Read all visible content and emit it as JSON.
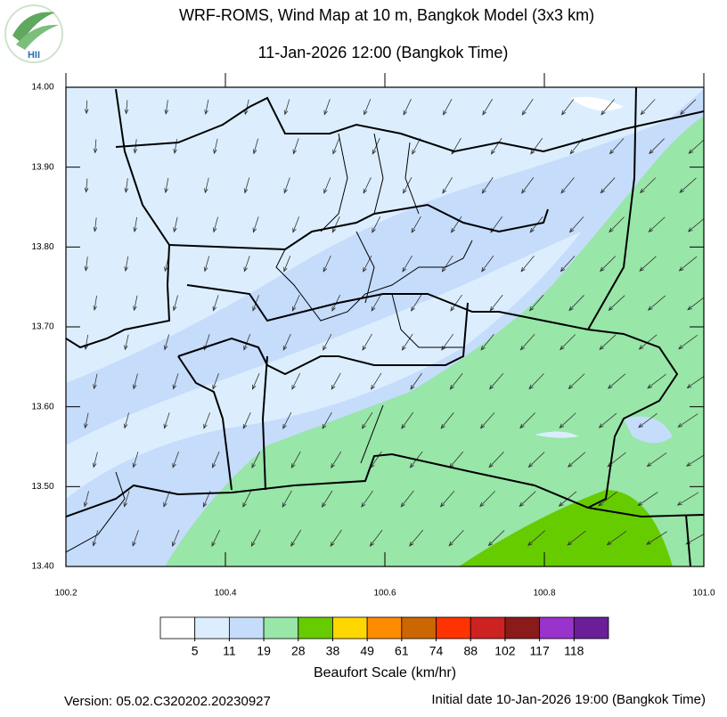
{
  "header": {
    "title": "WRF-ROMS, Wind Map at 10 m, Bangkok Model (3x3 km)",
    "subtitle": "11-Jan-2026 12:00 (Bangkok Time)",
    "logo_text": "HII"
  },
  "map": {
    "xlim": [
      100.2,
      101.0
    ],
    "ylim": [
      13.4,
      14.0
    ],
    "xticks": [
      100.2,
      100.4,
      100.6,
      100.8,
      {
        "value": 101.0,
        "label": "101.0"
      }
    ],
    "yticks": [
      {
        "value": 13.4,
        "label": "13.40"
      },
      {
        "value": 13.5,
        "label": "13.50"
      },
      {
        "value": 13.6,
        "label": "13.60"
      },
      {
        "value": 13.7,
        "label": "13.70"
      },
      {
        "value": 13.8,
        "label": "13.80"
      },
      {
        "value": 13.9,
        "label": "13.90"
      },
      {
        "value": 14.0,
        "label": "14.00"
      }
    ]
  },
  "colorbar": {
    "title": "Beaufort Scale (km/hr)",
    "colors": [
      "#ffffff",
      "#dceefe",
      "#c5dcfb",
      "#98e6a8",
      "#66cc00",
      "#ffd700",
      "#ff8c00",
      "#cc6600",
      "#ff3300",
      "#cc2222",
      "#8b1a1a",
      "#9933cc",
      "#6a1f99"
    ],
    "levels": [
      5,
      11,
      19,
      28,
      38,
      49,
      61,
      74,
      88,
      102,
      117,
      118
    ]
  },
  "footer": {
    "version": "Version: 05.02.C320202.20230927",
    "initial": "Initial date 10-Jan-2026 19:00 (Bangkok Time)"
  }
}
